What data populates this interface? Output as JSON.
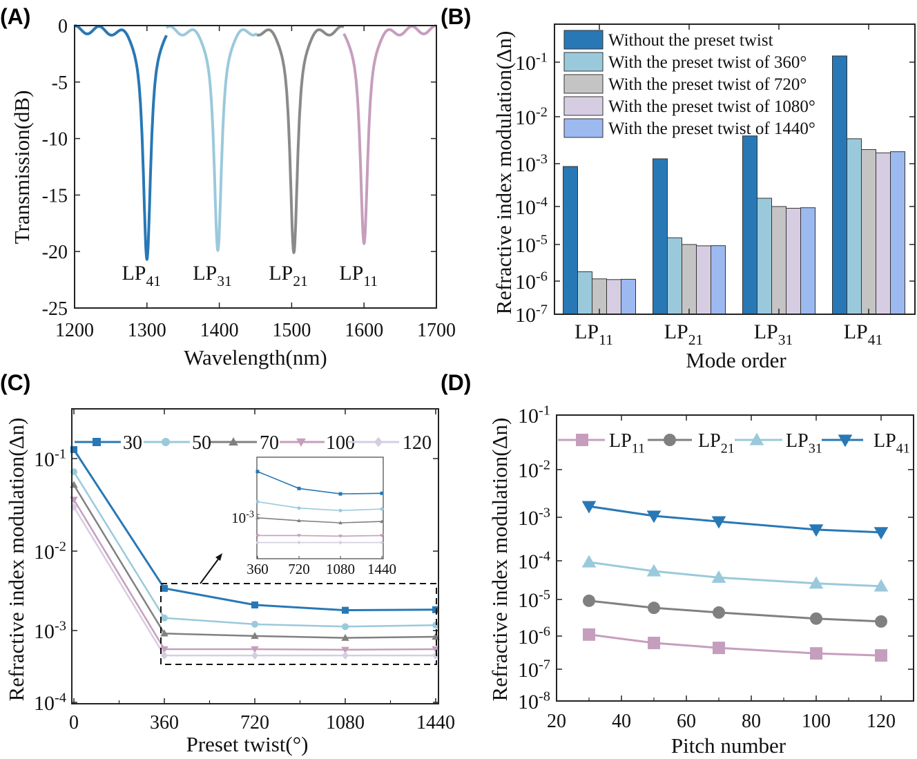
{
  "colors": {
    "dark_blue": "#2878b5",
    "light_blue": "#9ac9db",
    "gray_line": "#808080",
    "gray_bar": "#c4c4c4",
    "pink": "#c69ebd",
    "lavender": "#d6cde2",
    "periwinkle": "#9cb9f0"
  },
  "chart_data": [
    {
      "panel": "(A)",
      "type": "line",
      "xlabel": "Wavelength(nm)",
      "ylabel": "Transmission(dB)",
      "xlim": [
        1200,
        1700
      ],
      "ylim": [
        -25,
        0
      ],
      "xticks": [
        "1200",
        "1300",
        "1400",
        "1500",
        "1600",
        "1700"
      ],
      "yticks": [
        "0",
        "-5",
        "-10",
        "-15",
        "-20",
        "-25"
      ],
      "series": [
        {
          "label": {
            "base": "LP",
            "sub": "41"
          },
          "resonance_nm": 1300,
          "min_dB": -20.7,
          "range_nm": [
            1200,
            1327
          ],
          "color": "#2878b5"
        },
        {
          "label": {
            "base": "LP",
            "sub": "31"
          },
          "resonance_nm": 1398,
          "min_dB": -19.9,
          "range_nm": [
            1327,
            1452
          ],
          "color": "#9ac9db"
        },
        {
          "label": {
            "base": "LP",
            "sub": "21"
          },
          "resonance_nm": 1503,
          "min_dB": -20.1,
          "range_nm": [
            1452,
            1572
          ],
          "color": "#8a8a8a"
        },
        {
          "label": {
            "base": "LP",
            "sub": "11"
          },
          "resonance_nm": 1600,
          "min_dB": -19.3,
          "range_nm": [
            1572,
            1700
          ],
          "color": "#c69ebd"
        }
      ]
    },
    {
      "panel": "(B)",
      "type": "bar",
      "xlabel": "Mode order",
      "ylabel": "Refractive index modulation(Δn)",
      "yscale": "log",
      "ylim": [
        1e-07,
        0.2
      ],
      "yticks": [
        {
          "b": "10",
          "e": "-1"
        },
        {
          "b": "10",
          "e": "-2"
        },
        {
          "b": "10",
          "e": "-3"
        },
        {
          "b": "10",
          "e": "-4"
        },
        {
          "b": "10",
          "e": "-5"
        },
        {
          "b": "10",
          "e": "-6"
        },
        {
          "b": "10",
          "e": "-7"
        }
      ],
      "categories": [
        {
          "base": "LP",
          "sub": "11"
        },
        {
          "base": "LP",
          "sub": "21"
        },
        {
          "base": "LP",
          "sub": "31"
        },
        {
          "base": "LP",
          "sub": "41"
        }
      ],
      "legend_position": "top-left",
      "series": [
        {
          "name": "Without the preset twist",
          "color": "#2878b5",
          "values": [
            0.00086,
            0.00127,
            0.0039,
            0.13
          ]
        },
        {
          "name": "With the preset twist of 360°",
          "color": "#9ac9db",
          "values": [
            1.8e-06,
            1.5e-05,
            0.000156,
            0.0034
          ]
        },
        {
          "name": "With the preset twist of 720°",
          "color": "#c4c4c4",
          "values": [
            1.15e-06,
            1e-05,
            0.0001,
            0.002
          ]
        },
        {
          "name": "With the preset twist of 1080°",
          "color": "#d6cde2",
          "values": [
            1.1e-06,
            9.2e-06,
            9e-05,
            0.0017
          ]
        },
        {
          "name": "With the preset twist of 1440°",
          "color": "#9cb9f0",
          "values": [
            1.12e-06,
            9.3e-06,
            9.3e-05,
            0.0018
          ]
        }
      ]
    },
    {
      "panel": "(C)",
      "type": "line",
      "xlabel": "Preset twist(°)",
      "ylabel": "Refractive index modulation(Δn)",
      "yscale": "log",
      "ylim": [
        0.0001,
        0.3
      ],
      "xlim": [
        0,
        1440
      ],
      "x": [
        0,
        360,
        720,
        1080,
        1440
      ],
      "xticks": [
        "0",
        "360",
        "720",
        "1080",
        "1440"
      ],
      "yticks": [
        {
          "b": "10",
          "e": "-1"
        },
        {
          "b": "10",
          "e": "-2"
        },
        {
          "b": "10",
          "e": "-3"
        },
        {
          "b": "10",
          "e": "-4"
        }
      ],
      "legend_position": "top",
      "series": [
        {
          "name": "30",
          "color": "#2878b5",
          "marker": "square",
          "values": [
            0.125,
            0.0034,
            0.0021,
            0.0018,
            0.00183
          ]
        },
        {
          "name": "50",
          "color": "#9ac9db",
          "marker": "circle",
          "values": [
            0.072,
            0.00144,
            0.0012,
            0.00112,
            0.00117
          ]
        },
        {
          "name": "70",
          "color": "#808080",
          "marker": "triangle-up",
          "values": [
            0.052,
            0.00091,
            0.00084,
            0.00079,
            0.00082
          ]
        },
        {
          "name": "100",
          "color": "#c69ebd",
          "marker": "triangle-down",
          "values": [
            0.036,
            0.00055,
            0.00055,
            0.00054,
            0.00055
          ]
        },
        {
          "name": "120",
          "color": "#d6cde2",
          "marker": "diamond",
          "values": [
            0.03,
            0.00045,
            0.00045,
            0.00045,
            0.00045
          ]
        }
      ],
      "inset": {
        "x": [
          360,
          720,
          1080,
          1440
        ],
        "xticks": [
          "360",
          "720",
          "1080",
          "1440"
        ],
        "ytick": {
          "b": "10",
          "e": "-3"
        }
      }
    },
    {
      "panel": "(D)",
      "type": "line",
      "xlabel": "Pitch number",
      "ylabel": "Refractive index modulation(Δn)",
      "yscale": "log",
      "xlim": [
        20,
        130
      ],
      "ylim": [
        1e-08,
        0.1
      ],
      "x": [
        30,
        50,
        70,
        100,
        120
      ],
      "xticks": [
        "20",
        "40",
        "60",
        "80",
        "100",
        "120"
      ],
      "yticks": [
        {
          "b": "10",
          "e": "-1"
        },
        {
          "b": "10",
          "e": "-2"
        },
        {
          "b": "10",
          "e": "-3"
        },
        {
          "b": "10",
          "e": "-4"
        },
        {
          "b": "10",
          "e": "-5"
        },
        {
          "b": "10",
          "e": "-6"
        },
        {
          "b": "10",
          "e": "-7"
        },
        {
          "b": "10",
          "e": "-8"
        }
      ],
      "legend_position": "top",
      "series": [
        {
          "name": {
            "base": "LP",
            "sub": "11"
          },
          "color": "#c69ebd",
          "marker": "square",
          "values": [
            1.1e-06,
            6.2e-07,
            4.4e-07,
            3e-07,
            2.6e-07
          ]
        },
        {
          "name": {
            "base": "LP",
            "sub": "21"
          },
          "color": "#808080",
          "marker": "circle",
          "values": [
            9.2e-06,
            5.9e-06,
            4.4e-06,
            3e-06,
            2.5e-06
          ]
        },
        {
          "name": {
            "base": "LP",
            "sub": "31"
          },
          "color": "#9ac9db",
          "marker": "triangle-up",
          "values": [
            9.2e-05,
            5.4e-05,
            3.7e-05,
            2.6e-05,
            2.2e-05
          ]
        },
        {
          "name": {
            "base": "LP",
            "sub": "41"
          },
          "color": "#2878b5",
          "marker": "triangle-down",
          "values": [
            0.0017,
            0.00107,
            0.0008,
            0.00052,
            0.00045
          ]
        }
      ]
    }
  ]
}
